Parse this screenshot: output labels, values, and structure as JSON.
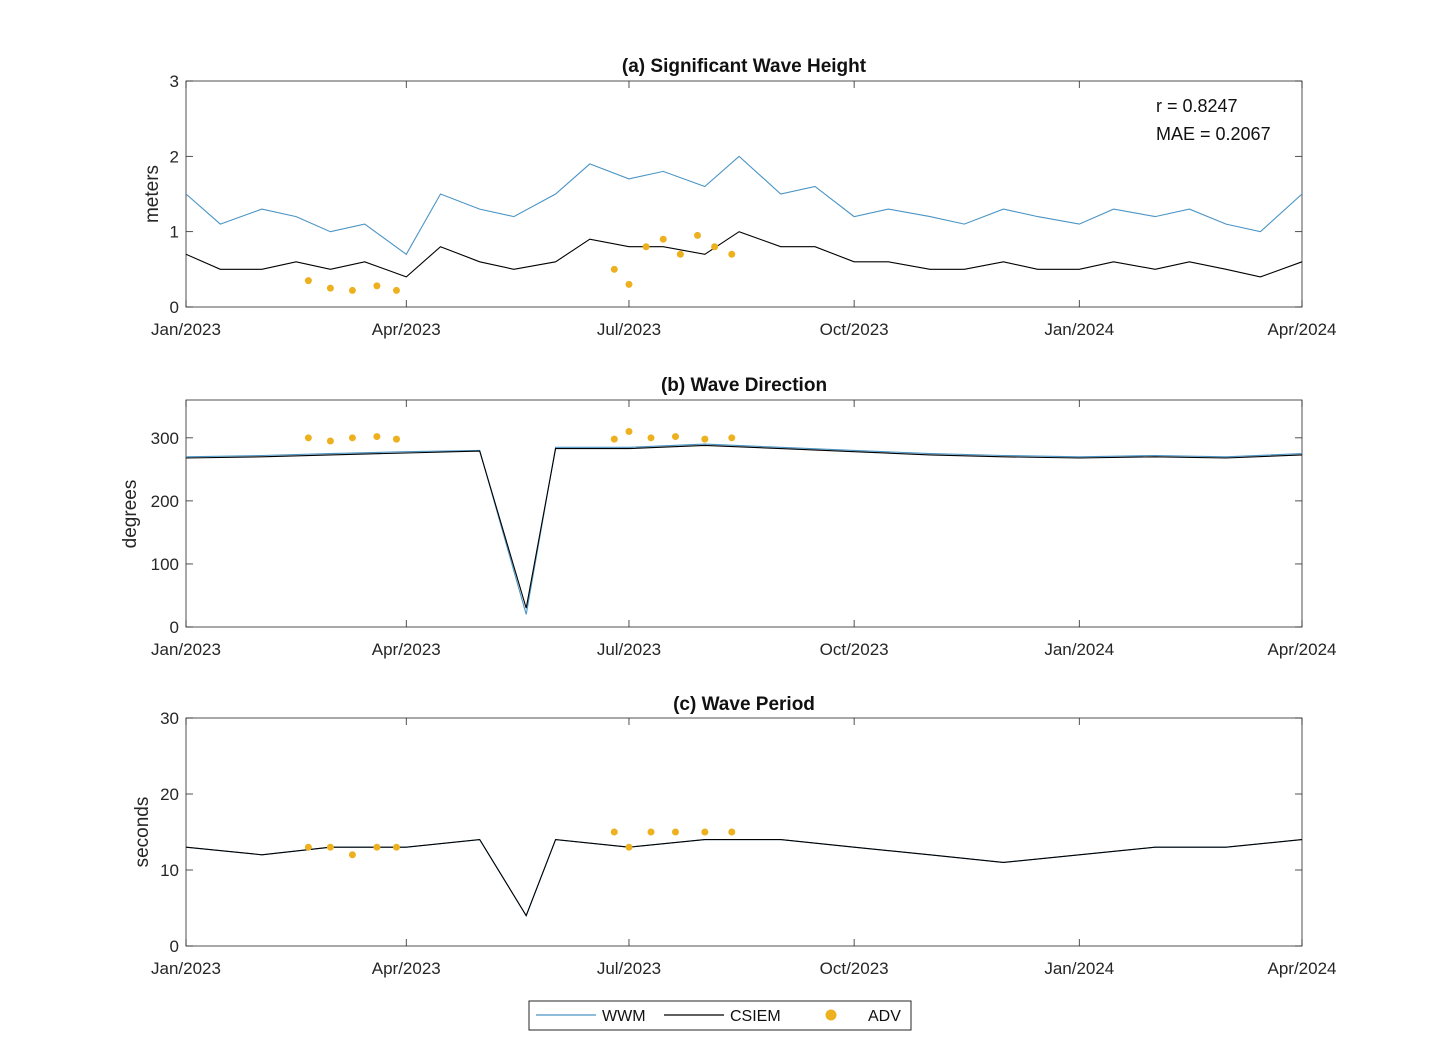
{
  "colors": {
    "wwm": "#4a94c4",
    "csiem": "#000000",
    "adv": "#EDB120",
    "axis": "#262626"
  },
  "legend": {
    "wwm": "WWM",
    "csiem": "CSIEM",
    "adv": "ADV"
  },
  "chart_data": [
    {
      "type": "line",
      "title": "(a) Significant Wave Height",
      "ylabel": "meters",
      "xlabel": "",
      "xlim": [
        "2023-01-01",
        "2024-04-01"
      ],
      "ylim": [
        0,
        3
      ],
      "yticks": [
        0,
        1,
        2,
        3
      ],
      "xticks": [
        "Jan/2023",
        "Apr/2023",
        "Jul/2023",
        "Oct/2023",
        "Jan/2024",
        "Apr/2024"
      ],
      "annotations": [
        "r = 0.8247",
        "MAE = 0.2067"
      ],
      "series": [
        {
          "name": "WWM",
          "x": [
            "2023-01-01",
            "2023-01-15",
            "2023-02-01",
            "2023-02-15",
            "2023-03-01",
            "2023-03-15",
            "2023-04-01",
            "2023-04-15",
            "2023-05-01",
            "2023-05-15",
            "2023-06-01",
            "2023-06-15",
            "2023-07-01",
            "2023-07-15",
            "2023-08-01",
            "2023-08-15",
            "2023-09-01",
            "2023-09-15",
            "2023-10-01",
            "2023-10-15",
            "2023-11-01",
            "2023-11-15",
            "2023-12-01",
            "2023-12-15",
            "2024-01-01",
            "2024-01-15",
            "2024-02-01",
            "2024-02-15",
            "2024-03-01",
            "2024-03-15",
            "2024-04-01"
          ],
          "y": [
            1.5,
            1.1,
            1.3,
            1.2,
            1.0,
            1.1,
            0.7,
            1.5,
            1.3,
            1.2,
            1.5,
            1.9,
            1.7,
            1.8,
            1.6,
            2.0,
            1.5,
            1.6,
            1.2,
            1.3,
            1.2,
            1.1,
            1.3,
            1.2,
            1.1,
            1.3,
            1.2,
            1.3,
            1.1,
            1.0,
            1.5
          ]
        },
        {
          "name": "CSIEM",
          "x": [
            "2023-01-01",
            "2023-01-15",
            "2023-02-01",
            "2023-02-15",
            "2023-03-01",
            "2023-03-15",
            "2023-04-01",
            "2023-04-15",
            "2023-05-01",
            "2023-05-15",
            "2023-06-01",
            "2023-06-15",
            "2023-07-01",
            "2023-07-15",
            "2023-08-01",
            "2023-08-15",
            "2023-09-01",
            "2023-09-15",
            "2023-10-01",
            "2023-10-15",
            "2023-11-01",
            "2023-11-15",
            "2023-12-01",
            "2023-12-15",
            "2024-01-01",
            "2024-01-15",
            "2024-02-01",
            "2024-02-15",
            "2024-03-01",
            "2024-03-15",
            "2024-04-01"
          ],
          "y": [
            0.7,
            0.5,
            0.5,
            0.6,
            0.5,
            0.6,
            0.4,
            0.8,
            0.6,
            0.5,
            0.6,
            0.9,
            0.8,
            0.8,
            0.7,
            1.0,
            0.8,
            0.8,
            0.6,
            0.6,
            0.5,
            0.5,
            0.6,
            0.5,
            0.5,
            0.6,
            0.5,
            0.6,
            0.5,
            0.4,
            0.6
          ]
        },
        {
          "name": "ADV",
          "x": [
            "2023-02-20",
            "2023-03-01",
            "2023-03-10",
            "2023-03-20",
            "2023-03-28",
            "2023-06-25",
            "2023-07-01",
            "2023-07-08",
            "2023-07-15",
            "2023-07-22",
            "2023-07-29",
            "2023-08-05",
            "2023-08-12"
          ],
          "y": [
            0.35,
            0.25,
            0.22,
            0.28,
            0.22,
            0.5,
            0.3,
            0.8,
            0.9,
            0.7,
            0.95,
            0.8,
            0.7
          ]
        }
      ]
    },
    {
      "type": "line",
      "title": "(b) Wave Direction",
      "ylabel": "degrees",
      "xlabel": "",
      "xlim": [
        "2023-01-01",
        "2024-04-01"
      ],
      "ylim": [
        0,
        360
      ],
      "yticks": [
        0,
        100,
        200,
        300
      ],
      "xticks": [
        "Jan/2023",
        "Apr/2023",
        "Jul/2023",
        "Oct/2023",
        "Jan/2024",
        "Apr/2024"
      ],
      "series": [
        {
          "name": "WWM",
          "x": [
            "2023-01-01",
            "2023-02-01",
            "2023-03-01",
            "2023-04-01",
            "2023-05-01",
            "2023-05-20",
            "2023-06-01",
            "2023-07-01",
            "2023-08-01",
            "2023-09-01",
            "2023-10-01",
            "2023-11-01",
            "2023-12-01",
            "2024-01-01",
            "2024-02-01",
            "2024-03-01",
            "2024-04-01"
          ],
          "y": [
            270,
            272,
            275,
            278,
            280,
            20,
            285,
            285,
            290,
            285,
            280,
            275,
            272,
            270,
            272,
            270,
            275
          ]
        },
        {
          "name": "CSIEM",
          "x": [
            "2023-01-01",
            "2023-02-01",
            "2023-03-01",
            "2023-04-01",
            "2023-05-01",
            "2023-05-20",
            "2023-06-01",
            "2023-07-01",
            "2023-08-01",
            "2023-09-01",
            "2023-10-01",
            "2023-11-01",
            "2023-12-01",
            "2024-01-01",
            "2024-02-01",
            "2024-03-01",
            "2024-04-01"
          ],
          "y": [
            268,
            270,
            273,
            276,
            279,
            30,
            283,
            283,
            288,
            283,
            278,
            273,
            270,
            268,
            270,
            268,
            273
          ]
        },
        {
          "name": "ADV",
          "x": [
            "2023-02-20",
            "2023-03-01",
            "2023-03-10",
            "2023-03-20",
            "2023-03-28",
            "2023-06-25",
            "2023-07-01",
            "2023-07-10",
            "2023-07-20",
            "2023-08-01",
            "2023-08-12"
          ],
          "y": [
            300,
            295,
            300,
            302,
            298,
            298,
            310,
            300,
            302,
            298,
            300
          ]
        }
      ]
    },
    {
      "type": "line",
      "title": "(c) Wave Period",
      "ylabel": "seconds",
      "xlabel": "",
      "xlim": [
        "2023-01-01",
        "2024-04-01"
      ],
      "ylim": [
        0,
        30
      ],
      "yticks": [
        0,
        10,
        20,
        30
      ],
      "xticks": [
        "Jan/2023",
        "Apr/2023",
        "Jul/2023",
        "Oct/2023",
        "Jan/2024",
        "Apr/2024"
      ],
      "series": [
        {
          "name": "WWM",
          "x": [
            "2023-01-01",
            "2023-02-01",
            "2023-03-01",
            "2023-04-01",
            "2023-05-01",
            "2023-05-20",
            "2023-06-01",
            "2023-07-01",
            "2023-08-01",
            "2023-09-01",
            "2023-10-01",
            "2023-11-01",
            "2023-12-01",
            "2024-01-01",
            "2024-02-01",
            "2024-03-01",
            "2024-04-01"
          ],
          "y": [
            13,
            12,
            13,
            13,
            14,
            4,
            14,
            13,
            14,
            14,
            13,
            12,
            11,
            12,
            13,
            13,
            14
          ]
        },
        {
          "name": "CSIEM",
          "x": [
            "2023-01-01",
            "2023-02-01",
            "2023-03-01",
            "2023-04-01",
            "2023-05-01",
            "2023-05-20",
            "2023-06-01",
            "2023-07-01",
            "2023-08-01",
            "2023-09-01",
            "2023-10-01",
            "2023-11-01",
            "2023-12-01",
            "2024-01-01",
            "2024-02-01",
            "2024-03-01",
            "2024-04-01"
          ],
          "y": [
            13,
            12,
            13,
            13,
            14,
            4,
            14,
            13,
            14,
            14,
            13,
            12,
            11,
            12,
            13,
            13,
            14
          ]
        },
        {
          "name": "ADV",
          "x": [
            "2023-02-20",
            "2023-03-01",
            "2023-03-10",
            "2023-03-20",
            "2023-03-28",
            "2023-06-25",
            "2023-07-01",
            "2023-07-10",
            "2023-07-20",
            "2023-08-01",
            "2023-08-12"
          ],
          "y": [
            13,
            13,
            12,
            13,
            13,
            15,
            13,
            15,
            15,
            15,
            15
          ]
        }
      ]
    }
  ]
}
